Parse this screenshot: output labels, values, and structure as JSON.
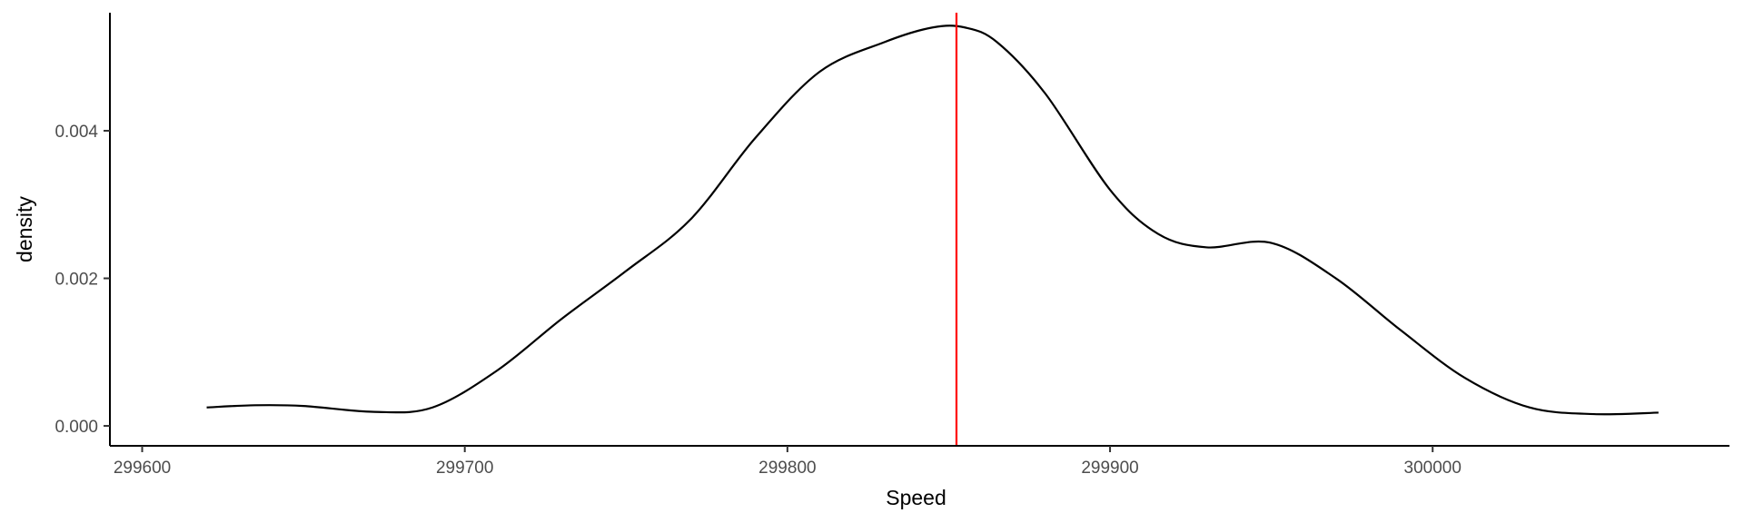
{
  "chart_data": {
    "type": "line",
    "xlabel": "Speed",
    "ylabel": "density",
    "xlim": [
      299590,
      300092
    ],
    "ylim": [
      -0.00027,
      0.0056
    ],
    "x_ticks": [
      {
        "value": 299600,
        "label": "299600"
      },
      {
        "value": 299700,
        "label": "299700"
      },
      {
        "value": 299800,
        "label": "299800"
      },
      {
        "value": 299900,
        "label": "299900"
      },
      {
        "value": 300000,
        "label": "300000"
      }
    ],
    "y_ticks": [
      {
        "value": 0.0,
        "label": "0.000"
      },
      {
        "value": 0.002,
        "label": "0.002"
      },
      {
        "value": 0.004,
        "label": "0.004"
      }
    ],
    "grid": false,
    "vline": {
      "x": 299852.4,
      "color": "#ff0000"
    },
    "series": [
      {
        "color": "#000000",
        "x": [
          299620,
          299635,
          299650,
          299672,
          299690,
          299710,
          299730,
          299750,
          299770,
          299790,
          299810,
          299830,
          299845,
          299855,
          299865,
          299880,
          299900,
          299915,
          299930,
          299950,
          299970,
          299990,
          300010,
          300030,
          300050,
          300070
        ],
        "y": [
          0.00025,
          0.00028,
          0.00027,
          0.00019,
          0.00025,
          0.00075,
          0.00145,
          0.0021,
          0.0028,
          0.0039,
          0.0048,
          0.0052,
          0.0054,
          0.0054,
          0.0052,
          0.0045,
          0.0032,
          0.0026,
          0.00242,
          0.00248,
          0.002,
          0.0013,
          0.00065,
          0.00025,
          0.00016,
          0.00018
        ]
      }
    ]
  }
}
